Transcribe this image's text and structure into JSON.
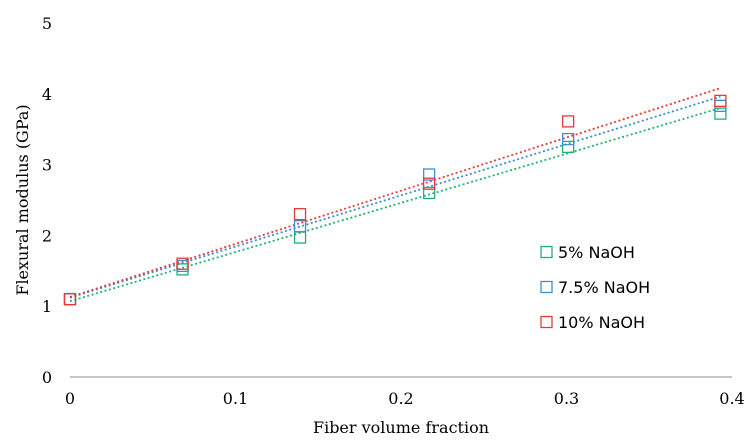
{
  "chart_data": {
    "type": "scatter",
    "title": "",
    "xlabel": "Fiber volume fraction",
    "ylabel": "Flexural modulus (GPa)",
    "xlim": [
      0,
      0.4
    ],
    "ylim": [
      0,
      5
    ],
    "xticks": [
      0,
      0.1,
      0.2,
      0.3,
      0.4
    ],
    "xtick_labels": [
      "0",
      "0.1",
      "0.2",
      "0.3",
      "0.4"
    ],
    "yticks": [
      0,
      1,
      2,
      3,
      4,
      5
    ],
    "ytick_labels": [
      "0",
      "1",
      "2",
      "3",
      "4",
      "5"
    ],
    "grid": false,
    "legend_position": "right",
    "marker": "open-square",
    "trendline": "linear-dotted",
    "series": [
      {
        "name": "5% NaOH",
        "color": "#1fb36f",
        "x": [
          0,
          0.068,
          0.139,
          0.217,
          0.301,
          0.393
        ],
        "y": [
          1.1,
          1.52,
          1.97,
          2.6,
          3.25,
          3.72
        ],
        "trend": [
          1.07,
          3.8
        ]
      },
      {
        "name": "7.5% NaOH",
        "color": "#3a8fd6",
        "x": [
          0,
          0.068,
          0.139,
          0.217,
          0.301,
          0.393
        ],
        "y": [
          1.1,
          1.57,
          2.13,
          2.86,
          3.36,
          3.83
        ],
        "trend": [
          1.12,
          3.96
        ]
      },
      {
        "name": "10% NaOH",
        "color": "#e83a3a",
        "x": [
          0,
          0.068,
          0.139,
          0.217,
          0.301,
          0.393
        ],
        "y": [
          1.1,
          1.6,
          2.3,
          2.73,
          3.61,
          3.9
        ],
        "trend": [
          1.13,
          4.08
        ]
      }
    ]
  }
}
